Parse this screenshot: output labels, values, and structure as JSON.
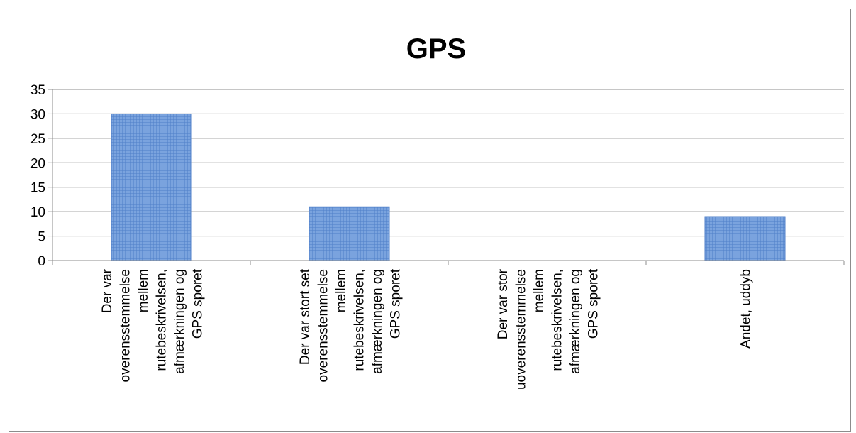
{
  "chart_data": {
    "type": "bar",
    "title": "GPS",
    "xlabel": "",
    "ylabel": "",
    "ylim": [
      0,
      35
    ],
    "yticks": [
      "0",
      "5",
      "10",
      "15",
      "20",
      "25",
      "30",
      "35"
    ],
    "grid": true,
    "legend": "none",
    "categories": [
      [
        "Der var",
        "overensstemmelse",
        "mellem",
        "rutebeskrivelsen,",
        "afmærkningen og",
        "GPS sporet"
      ],
      [
        "Der var stort set",
        "overensstemmelse",
        "mellem",
        "rutebeskrivelsen,",
        "afmærkningen og",
        "GPS sporet"
      ],
      [
        "Der var stor",
        "uoverensstemmelse",
        "mellem",
        "rutebeskrivelsen,",
        "afmærkningen og",
        "GPS sporet"
      ],
      [
        "Andet, uddyb"
      ]
    ],
    "values": [
      30,
      11,
      0,
      9
    ],
    "colors": {
      "bar_fill": "#6f97d6",
      "bar_stroke": "#4f7fc8",
      "grid": "#8c8c8c"
    }
  }
}
